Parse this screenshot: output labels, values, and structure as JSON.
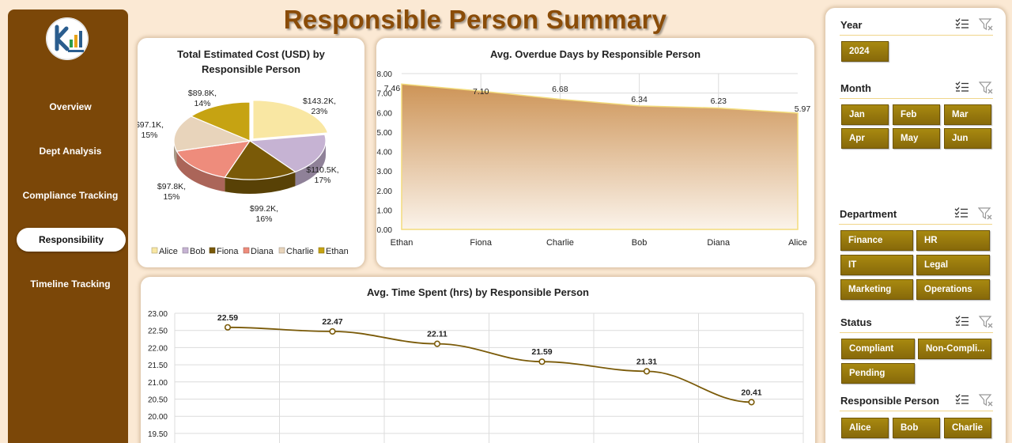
{
  "header": {
    "title": "Responsible Person Summary"
  },
  "sidebar": {
    "items": [
      {
        "label": "Overview"
      },
      {
        "label": "Dept Analysis"
      },
      {
        "label": "Compliance Tracking"
      },
      {
        "label": "Responsibility",
        "active": true
      },
      {
        "label": "Timeline Tracking"
      }
    ]
  },
  "pie_panel": {
    "title_line1": "Total Estimated Cost (USD) by",
    "title_line2": "Responsible Person"
  },
  "overdue_panel": {
    "title": "Avg. Overdue Days by Responsible Person"
  },
  "time_panel": {
    "title": "Avg. Time Spent (hrs) by Responsible Person"
  },
  "filters": {
    "year": {
      "label": "Year",
      "options": [
        "2024"
      ]
    },
    "month": {
      "label": "Month",
      "options": [
        "Jan",
        "Feb",
        "Mar",
        "Apr",
        "May",
        "Jun"
      ]
    },
    "department": {
      "label": "Department",
      "options": [
        "Finance",
        "HR",
        "IT",
        "Legal",
        "Marketing",
        "Operations"
      ]
    },
    "status": {
      "label": "Status",
      "options": [
        "Compliant",
        "Non-Compli...",
        "Pending"
      ]
    },
    "responsible": {
      "label": "Responsible Person",
      "options": [
        "Alice",
        "Bob",
        "Charlie"
      ]
    }
  },
  "chart_data": [
    {
      "type": "pie",
      "title": "Total Estimated Cost (USD) by Responsible Person",
      "categories": [
        "Alice",
        "Bob",
        "Fiona",
        "Diana",
        "Charlie",
        "Ethan"
      ],
      "values": [
        143.2,
        110.5,
        99.2,
        97.8,
        97.1,
        89.8
      ],
      "data_labels": [
        "$143.2K,",
        "$110.5K,",
        "$99.2K,",
        "$97.8K,",
        "$97.1K,",
        "$89.8K,"
      ],
      "percent_labels": [
        "23%",
        "17%",
        "16%",
        "15%",
        "15%",
        "14%"
      ],
      "colors": [
        "#f9e7a3",
        "#c6b3d3",
        "#7a5a08",
        "#ee8c7c",
        "#e8d4bb",
        "#c6a312"
      ],
      "legend": "bottom"
    },
    {
      "type": "area",
      "title": "Avg. Overdue Days by Responsible Person",
      "categories": [
        "Ethan",
        "Fiona",
        "Charlie",
        "Bob",
        "Diana",
        "Alice"
      ],
      "values": [
        7.46,
        7.1,
        6.68,
        6.34,
        6.23,
        5.97
      ],
      "data_labels": [
        "7.46",
        "7.10",
        "6.68",
        "6.34",
        "6.23",
        "5.97"
      ],
      "ylim": [
        0,
        8
      ],
      "yticks": [
        "0.00",
        "1.00",
        "2.00",
        "3.00",
        "4.00",
        "5.00",
        "6.00",
        "7.00",
        "8.00"
      ],
      "grid": true
    },
    {
      "type": "line",
      "title": "Avg. Time Spent (hrs) by Responsible Person",
      "values": [
        22.59,
        22.47,
        22.11,
        21.59,
        21.31,
        20.41
      ],
      "data_labels": [
        "22.59",
        "22.47",
        "22.11",
        "21.59",
        "21.31",
        "20.41"
      ],
      "ylim": [
        19.5,
        23
      ],
      "yticks": [
        "19.50",
        "20.00",
        "20.50",
        "21.00",
        "21.50",
        "22.00",
        "22.50",
        "23.00"
      ],
      "grid": true,
      "color": "#7a5a08"
    }
  ]
}
